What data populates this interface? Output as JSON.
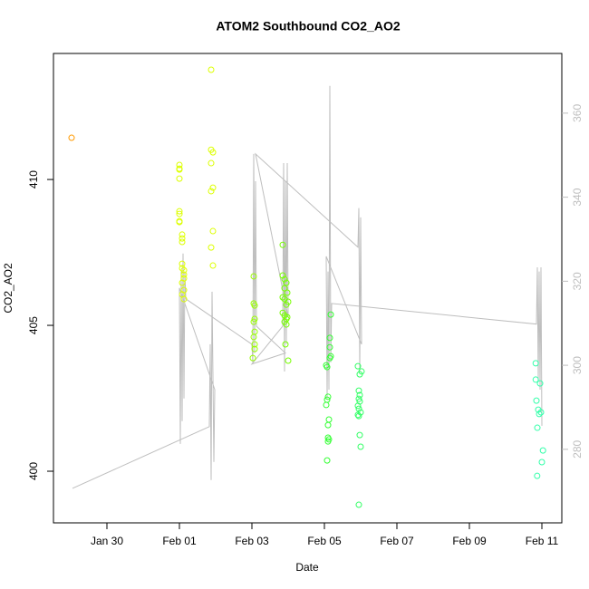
{
  "chart_data": {
    "type": "scatter",
    "title": "ATOM2 Southbound CO2_AO2",
    "x_label": "Date",
    "y_label": "CO2_AO2",
    "xlim": [
      -1.475,
      12.55
    ],
    "xticks": [
      {
        "value": 0,
        "label": "Jan 30"
      },
      {
        "value": 2,
        "label": "Feb 01"
      },
      {
        "value": 4,
        "label": "Feb 03"
      },
      {
        "value": 6,
        "label": "Feb 05"
      },
      {
        "value": 8,
        "label": "Feb 07"
      },
      {
        "value": 10,
        "label": "Feb 09"
      },
      {
        "value": 12,
        "label": "Feb 11"
      }
    ],
    "ylim": [
      398.23,
      414.32
    ],
    "yticks": [
      400,
      405,
      410
    ],
    "y2lim": [
      262.5,
      374.2
    ],
    "y2ticks": [
      280,
      300,
      320,
      340,
      360
    ],
    "y2_color": "#bebebe",
    "series": [
      {
        "type": "scatter",
        "color": "#ff9900",
        "x": [
          -0.975
        ],
        "values": [
          411.43
        ]
      },
      {
        "type": "scatter",
        "color": "#ddff00",
        "x": [
          2.0,
          2.0,
          2.0,
          2.0,
          2.0,
          2.0,
          2.0,
          2.0,
          2.075,
          2.075,
          2.075,
          2.075,
          2.075,
          2.125,
          2.125,
          2.125,
          2.075,
          2.125,
          2.075,
          2.125,
          2.875,
          2.875,
          2.925,
          2.875,
          2.925,
          2.875,
          2.925,
          2.875,
          2.925
        ],
        "values": [
          410.5,
          410.37,
          410.34,
          410.03,
          408.91,
          408.82,
          408.57,
          408.54,
          408.11,
          407.98,
          407.86,
          407.11,
          406.96,
          406.89,
          406.74,
          406.61,
          406.46,
          406.21,
          406.06,
          405.9,
          413.76,
          411.02,
          410.93,
          410.56,
          409.72,
          409.6,
          408.23,
          407.67,
          407.05
        ]
      },
      {
        "type": "scatter",
        "color": "#99ff00",
        "x": [
          4.05,
          4.05,
          4.075,
          4.075,
          4.05,
          4.075,
          4.05,
          4.075,
          4.075,
          4.025
        ],
        "values": [
          406.68,
          405.75,
          405.68,
          405.22,
          405.12,
          404.78,
          404.6,
          404.35,
          404.19,
          403.88
        ]
      },
      {
        "type": "scatter",
        "color": "#77ff00",
        "x": [
          4.85,
          4.85,
          4.9,
          4.95,
          4.9,
          4.975,
          4.85,
          4.9,
          5.0,
          4.95,
          4.85,
          4.9,
          4.975,
          4.95,
          4.9,
          4.95,
          4.925,
          5.0
        ],
        "values": [
          407.76,
          406.71,
          406.58,
          406.46,
          406.27,
          406.12,
          405.96,
          405.9,
          405.81,
          405.71,
          405.43,
          405.34,
          405.28,
          405.22,
          405.12,
          405.03,
          404.35,
          403.79
        ]
      },
      {
        "type": "scatter",
        "color": "#33ff33",
        "x": [
          6.175,
          6.15,
          6.15,
          6.175,
          6.15,
          6.05,
          6.075,
          6.1,
          6.075,
          6.05,
          6.125,
          6.1,
          6.1,
          6.125,
          6.1,
          6.075
        ],
        "values": [
          405.37,
          404.57,
          404.25,
          403.94,
          403.88,
          403.63,
          403.57,
          402.55,
          402.45,
          402.27,
          401.77,
          401.58,
          401.15,
          401.09,
          401.02,
          400.37
        ]
      },
      {
        "type": "scatter",
        "color": "#33ff66",
        "x": [
          6.925,
          7.025,
          6.975,
          6.95,
          6.975,
          6.95,
          6.975,
          6.925,
          6.95,
          7.0,
          6.925,
          6.95,
          6.975,
          7.0,
          6.95
        ],
        "values": [
          403.6,
          403.42,
          403.32,
          402.76,
          402.61,
          402.48,
          402.39,
          402.24,
          402.14,
          402.02,
          401.93,
          401.89,
          401.24,
          400.84,
          398.85
        ]
      },
      {
        "type": "scatter",
        "color": "#33ffaa",
        "x": [
          11.83,
          11.83,
          11.95,
          11.85,
          11.9,
          11.925,
          11.975,
          11.875,
          12.03,
          12.0,
          11.87
        ],
        "values": [
          403.7,
          403.14,
          403.01,
          402.42,
          402.11,
          401.96,
          402.02,
          401.49,
          400.71,
          400.31,
          399.84
        ]
      },
      {
        "type": "line",
        "axis": "y2",
        "color": "#bebebe",
        "x": [
          -0.95,
          2.825,
          2.85,
          2.875,
          2.9,
          2.95,
          2.975,
          2.0,
          2.025,
          2.05,
          2.075,
          2.1,
          2.125,
          2.15,
          2.175,
          4.0,
          4.025,
          4.05,
          4.075,
          4.1,
          4.125,
          4.925,
          4.0,
          4.85,
          4.875,
          4.9,
          4.925,
          4.95,
          4.975,
          5.0,
          4.1,
          6.925,
          6.95,
          6.975,
          7.0,
          7.025,
          6.05,
          6.075,
          6.1,
          6.125,
          6.15,
          6.175,
          6.2,
          11.85,
          11.875,
          11.9,
          11.925,
          11.95,
          11.975,
          12.0
        ],
        "values": [
          270.7,
          285.4,
          305.0,
          272.7,
          317.5,
          277.0,
          294.2,
          318.4,
          281.3,
          322.3,
          286.7,
          326.6,
          292.1,
          322.3,
          315.8,
          305.0,
          300.7,
          350.3,
          302.9,
          343.8,
          309.3,
          302.9,
          300.3,
          309.3,
          348.1,
          298.5,
          343.8,
          305.0,
          348.1,
          311.5,
          350.3,
          328.1,
          337.4,
          298.5,
          335.2,
          305.0,
          325.9,
          292.1,
          322.3,
          294.2,
          366.5,
          300.7,
          314.7,
          309.8,
          323.3,
          296.4,
          322.3,
          294.2,
          323.3,
          285.6
        ]
      }
    ]
  }
}
